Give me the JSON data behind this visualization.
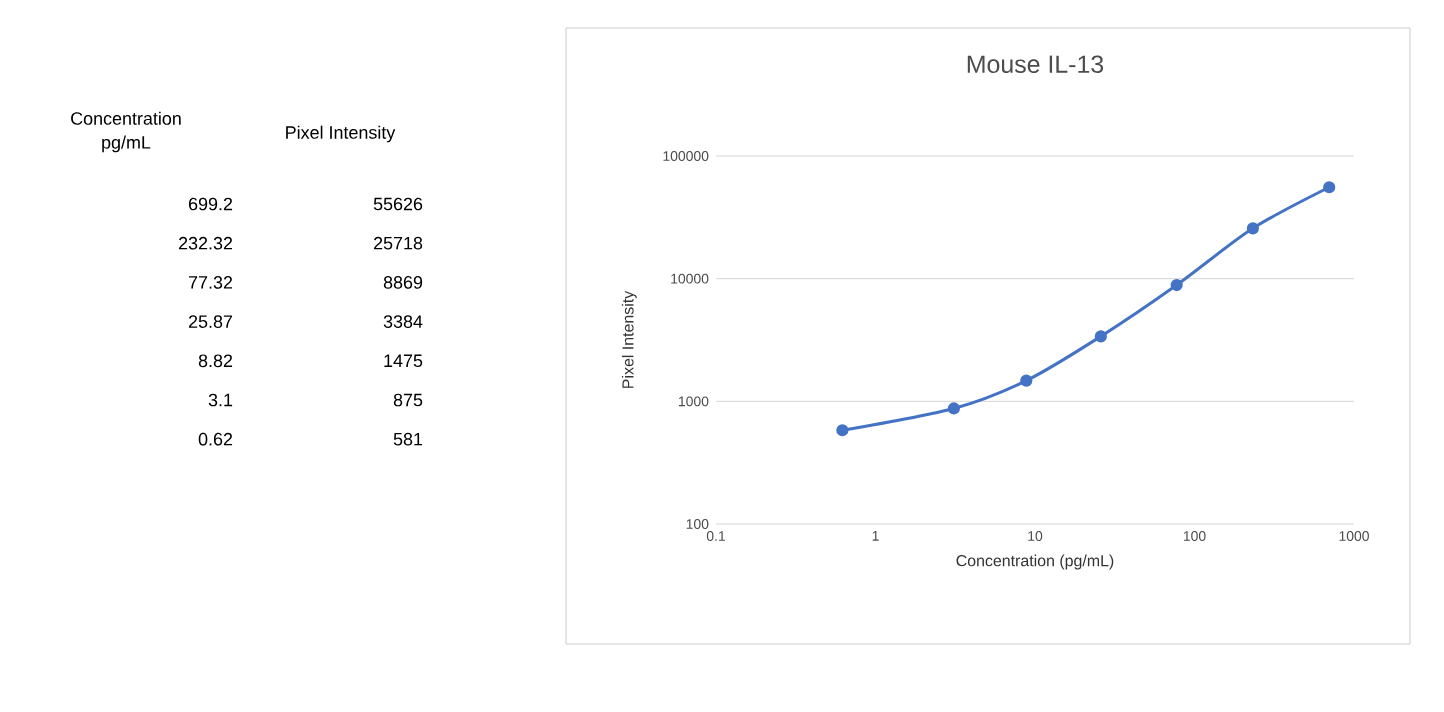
{
  "chart_data": {
    "type": "line",
    "title": "Mouse  IL-13",
    "xlabel": "Concentration (pg/mL)",
    "ylabel": "Pixel Intensity",
    "x": [
      699.2,
      232.32,
      77.32,
      25.87,
      8.82,
      3.1,
      0.62
    ],
    "series": [
      {
        "color": "#4472c4",
        "values": [
          55626,
          25718,
          8869,
          3384,
          1475,
          875,
          581
        ]
      }
    ],
    "annotations": [
      "Concentration pg/mL",
      "Pixel Intensity",
      "699.2",
      "55626",
      "232.32",
      "25718",
      "77.32",
      "8869",
      "25.87",
      "3384",
      "8.82",
      "1475",
      "3.1",
      "875",
      "0.62",
      "581"
    ],
    "log": "xy",
    "xlim": [
      0.1,
      1000
    ],
    "ylim": [
      100,
      100000
    ],
    "xticks": [
      0.1,
      1,
      10,
      100,
      1000
    ],
    "yticks": [
      100,
      1000,
      10000,
      100000
    ],
    "grid": "y",
    "marker": "circle",
    "line_style": "solid"
  }
}
